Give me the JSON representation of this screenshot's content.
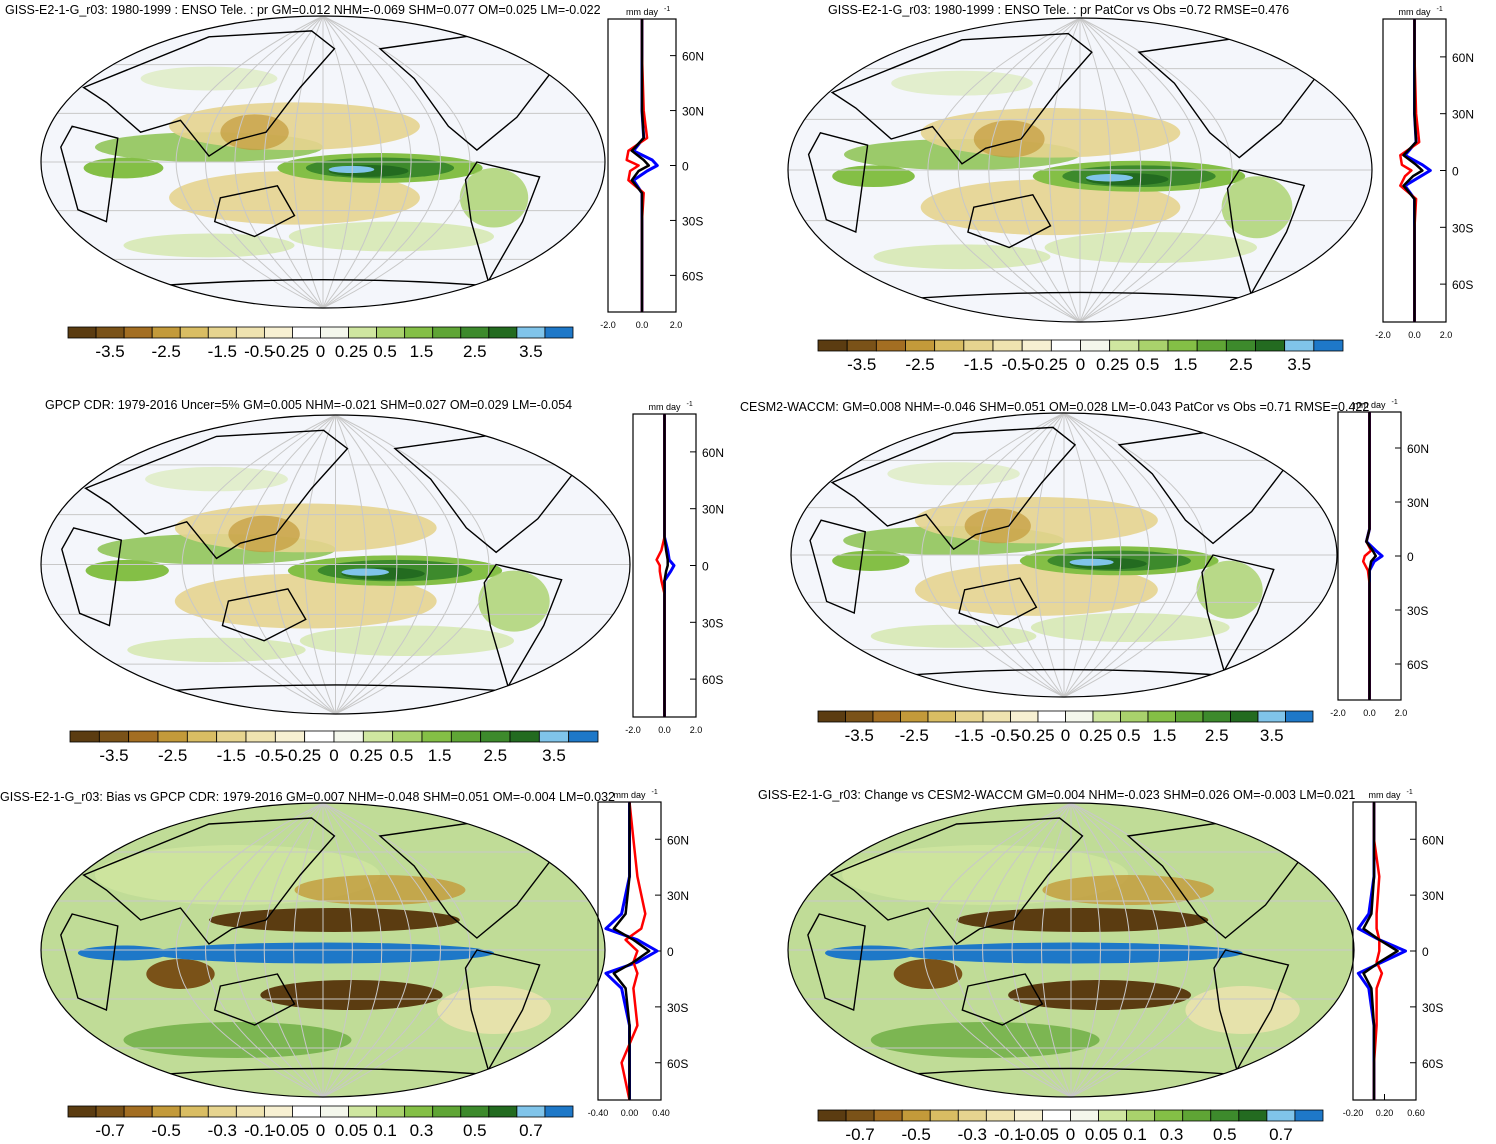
{
  "colors": {
    "scale": [
      "#5b3c11",
      "#7a5218",
      "#a36e22",
      "#c39a3a",
      "#d9bd63",
      "#e6d48f",
      "#efe3b0",
      "#f7f0d2",
      "#ffffff",
      "#f4f7ec",
      "#cfe6a0",
      "#a9d26c",
      "#84bf46",
      "#5fa535",
      "#3d8a2c",
      "#236b20",
      "#80c4ea",
      "#1e78c8"
    ],
    "ocean": "#f4f6fb",
    "land_edge": "#000000",
    "grid": "#c8c8c8",
    "line_obs": "#0000ff",
    "line_model": "#ff0000",
    "line_mean": "#000000"
  },
  "colorbar_standard": [
    "-3.5",
    "-2.5",
    "-1.5",
    "-0.5",
    "-0.25",
    "0",
    "0.25",
    "0.5",
    "1.5",
    "2.5",
    "3.5"
  ],
  "colorbar_diff": [
    "-0.7",
    "-0.5",
    "-0.3",
    "-0.1",
    "-0.05",
    "0",
    "0.05",
    "0.1",
    "0.3",
    "0.5",
    "0.7"
  ],
  "profile_unit": "mm day",
  "profile_unit_exp": "-1",
  "lat_labels": [
    "60N",
    "30N",
    "0",
    "30S",
    "60S"
  ],
  "panels": [
    {
      "id": "p1",
      "title": "GISS-E2-1-G_r03: 1980-1999 : ENSO Tele. : pr GM=0.012 NHM=-0.069 SHM=0.077 OM=0.025 LM=-0.022",
      "profile_ticks": [
        "-2.0",
        "0.0",
        "2.0"
      ],
      "colorbar": "standard",
      "chart_data": {
        "type": "heatmap",
        "title": "GISS-E2-1-G_r03: 1980-1999 : ENSO Tele. : pr GM=0.012 NHM=-0.069 SHM=0.077 OM=0.025 LM=-0.022",
        "zonal_profile": {
          "x_range": [
            -2,
            2
          ],
          "lat": [
            80,
            60,
            30,
            15,
            8,
            3,
            0,
            -3,
            -8,
            -15,
            -30,
            -60,
            -80
          ],
          "series": [
            {
              "values": [
                0,
                0,
                0,
                0.1,
                -0.5,
                0.6,
                0.9,
                0.3,
                -0.5,
                0,
                0,
                0,
                0
              ]
            },
            {
              "values": [
                0,
                0,
                0.1,
                0.3,
                -0.8,
                -0.9,
                -0.2,
                -0.7,
                -0.8,
                0.1,
                0,
                0,
                0
              ]
            },
            {
              "values": [
                0,
                0,
                0,
                0.1,
                -0.6,
                0.1,
                0.4,
                -0.2,
                -0.6,
                0,
                0,
                0,
                0
              ]
            }
          ]
        }
      }
    },
    {
      "id": "p2",
      "title": "GISS-E2-1-G_r03: 1980-1999 : ENSO Tele. : pr PatCor vs Obs =0.72 RMSE=0.476",
      "profile_ticks": [
        "-2.0",
        "0.0",
        "2.0"
      ],
      "colorbar": "standard",
      "chart_data": {
        "type": "heatmap",
        "title": "GISS-E2-1-G_r03: 1980-1999 : ENSO Tele. : pr PatCor vs Obs =0.72 RMSE=0.476",
        "zonal_profile": {
          "x_range": [
            -2,
            2
          ],
          "lat": [
            80,
            60,
            30,
            15,
            8,
            3,
            0,
            -3,
            -8,
            -15,
            -30,
            -60,
            -80
          ],
          "series": [
            {
              "values": [
                0,
                0,
                0,
                0.1,
                -0.6,
                0.5,
                1.0,
                0.4,
                -0.6,
                0,
                0,
                0,
                0
              ]
            },
            {
              "values": [
                0,
                0,
                0.1,
                0.3,
                -0.9,
                -0.8,
                -0.2,
                -0.6,
                -0.9,
                0.1,
                0,
                0,
                0
              ]
            },
            {
              "values": [
                0,
                0,
                0,
                0.1,
                -0.7,
                0.1,
                0.5,
                -0.1,
                -0.7,
                0,
                0,
                0,
                0
              ]
            }
          ]
        }
      }
    },
    {
      "id": "p3",
      "title": "GPCP CDR: 1979-2016 Uncer=5% GM=0.005 NHM=-0.021 SHM=0.027 OM=0.029 LM=-0.054",
      "profile_ticks": [
        "-2.0",
        "0.0",
        "2.0"
      ],
      "colorbar": "standard",
      "chart_data": {
        "type": "heatmap",
        "title": "GPCP CDR: 1979-2016 Uncer=5% GM=0.005 NHM=-0.021 SHM=0.027 OM=0.029 LM=-0.054",
        "zonal_profile": {
          "x_range": [
            -2,
            2
          ],
          "lat": [
            80,
            60,
            30,
            15,
            8,
            3,
            0,
            -3,
            -8,
            -15,
            -30,
            -60,
            -80
          ],
          "series": [
            {
              "values": [
                0,
                0,
                0,
                0,
                0.2,
                0.3,
                0.6,
                0.4,
                0,
                0,
                0,
                0,
                0
              ]
            },
            {
              "values": [
                0,
                0,
                0,
                0,
                -0.2,
                -0.5,
                -0.3,
                -0.3,
                -0.2,
                0,
                0,
                0,
                0
              ]
            },
            {
              "values": [
                0,
                0,
                0,
                0,
                0.1,
                0.2,
                0.2,
                0.1,
                0,
                0,
                0,
                0,
                0
              ]
            }
          ]
        }
      }
    },
    {
      "id": "p4",
      "title": "CESM2-WACCM: GM=0.008 NHM=-0.046 SHM=0.051 OM=0.028 LM=-0.043 PatCor vs Obs =0.71 RMSE=0.422",
      "profile_ticks": [
        "-2.0",
        "0.0",
        "2.0"
      ],
      "colorbar": "standard",
      "chart_data": {
        "type": "heatmap",
        "title": "CESM2-WACCM: GM=0.008 NHM=-0.046 SHM=0.051 OM=0.028 LM=-0.043 PatCor vs Obs =0.71 RMSE=0.422",
        "zonal_profile": {
          "x_range": [
            -2,
            2
          ],
          "lat": [
            80,
            60,
            30,
            15,
            8,
            3,
            0,
            -3,
            -8,
            -15,
            -30,
            -60,
            -80
          ],
          "series": [
            {
              "values": [
                0,
                0,
                0,
                0,
                -0.2,
                0.4,
                0.8,
                0.3,
                0,
                0,
                0,
                0,
                0
              ]
            },
            {
              "values": [
                0,
                0,
                0,
                0,
                -0.2,
                0.1,
                -0.3,
                -0.4,
                -0.1,
                0,
                0,
                0,
                0
              ]
            },
            {
              "values": [
                0,
                0,
                0,
                0,
                -0.2,
                0.2,
                0.4,
                0.1,
                0,
                0,
                0,
                0,
                0
              ]
            }
          ]
        }
      }
    },
    {
      "id": "p5",
      "title": "GISS-E2-1-G_r03: Bias vs GPCP CDR: 1979-2016 GM=0.007 NHM=-0.048 SHM=0.051 OM=-0.004 LM=0.032",
      "profile_ticks": [
        "-0.40",
        "0.00",
        "0.40"
      ],
      "colorbar": "diff",
      "chart_data": {
        "type": "heatmap",
        "title": "GISS-E2-1-G_r03: Bias vs GPCP CDR: 1979-2016 GM=0.007 NHM=-0.048 SHM=0.051 OM=-0.004 LM=0.032",
        "zonal_profile": {
          "x_range": [
            -0.4,
            0.4
          ],
          "lat": [
            80,
            60,
            40,
            20,
            12,
            6,
            0,
            -6,
            -12,
            -20,
            -40,
            -60,
            -80
          ],
          "series": [
            {
              "values": [
                0,
                0,
                0,
                -0.1,
                -0.3,
                0.1,
                0.35,
                0.1,
                -0.3,
                -0.1,
                0,
                0,
                0
              ]
            },
            {
              "values": [
                0,
                0.05,
                0.1,
                0.2,
                0.15,
                -0.05,
                0.1,
                0.05,
                0.1,
                0.05,
                0.1,
                -0.1,
                0
              ]
            },
            {
              "values": [
                0,
                0,
                0,
                -0.05,
                -0.2,
                0.05,
                0.25,
                0.05,
                -0.2,
                -0.05,
                0,
                0,
                0
              ]
            }
          ]
        }
      }
    },
    {
      "id": "p6",
      "title": "GISS-E2-1-G_r03: Change vs CESM2-WACCM GM=0.004 NHM=-0.023 SHM=0.026 OM=-0.003 LM=0.021",
      "profile_ticks": [
        "-0.20",
        "0.20",
        "0.60"
      ],
      "colorbar": "diff",
      "chart_data": {
        "type": "heatmap",
        "title": "GISS-E2-1-G_r03: Change vs CESM2-WACCM GM=0.004 NHM=-0.023 SHM=0.026 OM=-0.003 LM=0.021",
        "zonal_profile": {
          "x_range": [
            -0.4,
            0.8
          ],
          "lat": [
            80,
            60,
            40,
            20,
            12,
            6,
            0,
            -6,
            -12,
            -20,
            -40,
            -60,
            -80
          ],
          "series": [
            {
              "values": [
                0,
                0,
                0,
                -0.1,
                -0.3,
                0.1,
                0.6,
                0.15,
                -0.3,
                -0.1,
                0,
                0,
                0
              ]
            },
            {
              "values": [
                0,
                0,
                0.1,
                0.05,
                0.05,
                0.1,
                0.1,
                0.05,
                0.15,
                0.05,
                0.05,
                0,
                0
              ]
            },
            {
              "values": [
                0,
                0,
                0,
                -0.05,
                -0.2,
                0.1,
                0.45,
                0.1,
                -0.2,
                -0.05,
                0,
                0,
                0
              ]
            }
          ]
        }
      }
    }
  ]
}
